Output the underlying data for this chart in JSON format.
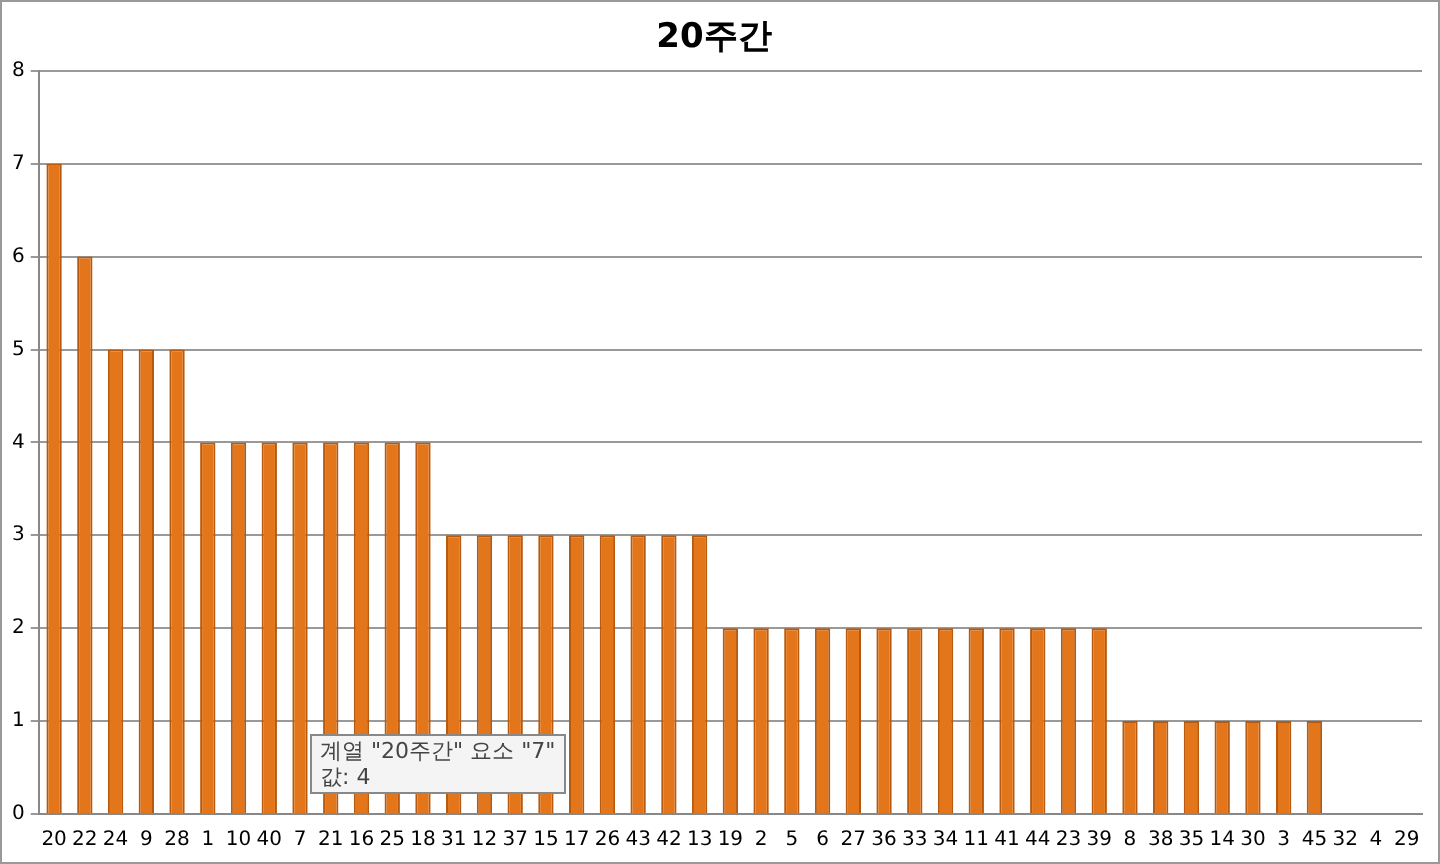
{
  "chart_data": {
    "type": "bar",
    "title": "20주간",
    "categories": [
      "20",
      "22",
      "24",
      "9",
      "28",
      "1",
      "10",
      "40",
      "7",
      "21",
      "16",
      "25",
      "18",
      "31",
      "12",
      "37",
      "15",
      "17",
      "26",
      "43",
      "42",
      "13",
      "19",
      "2",
      "5",
      "6",
      "27",
      "36",
      "33",
      "34",
      "11",
      "41",
      "44",
      "23",
      "39",
      "8",
      "38",
      "35",
      "14",
      "30",
      "3",
      "45",
      "32",
      "4",
      "29"
    ],
    "values": [
      7,
      6,
      5,
      5,
      5,
      4,
      4,
      4,
      4,
      4,
      4,
      4,
      4,
      3,
      3,
      3,
      3,
      3,
      3,
      3,
      3,
      3,
      2,
      2,
      2,
      2,
      2,
      2,
      2,
      2,
      2,
      2,
      2,
      2,
      2,
      1,
      1,
      1,
      1,
      1,
      1,
      1,
      0,
      0,
      0
    ],
    "color": "#e3761b",
    "ylim": [
      0,
      8
    ],
    "yticks": [
      0,
      1,
      2,
      3,
      4,
      5,
      6,
      7,
      8
    ],
    "grid": "y",
    "legend": false,
    "annotations": [
      "계열 \"20주간\" 요소 \"7\"\n값: 4"
    ]
  }
}
